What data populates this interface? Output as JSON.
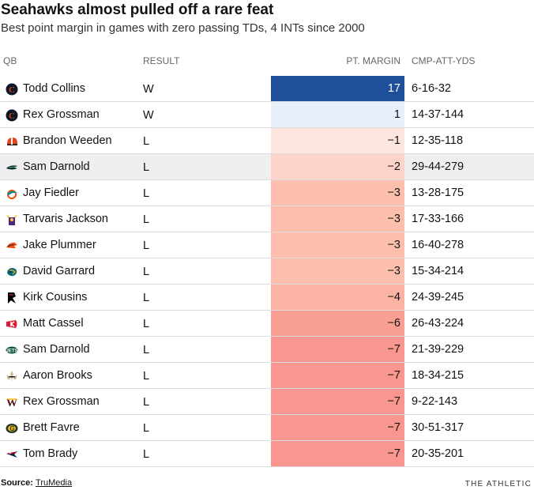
{
  "title": "Seahawks almost pulled off a rare feat",
  "subtitle": "Best point margin in games with zero passing TDs, 4 INTs since 2000",
  "columns": {
    "qb": "QB",
    "result": "RESULT",
    "margin": "PT. MARGIN",
    "cmp_att_yds": "CMP-ATT-YDS"
  },
  "chart_data": {
    "type": "table",
    "title": "Seahawks almost pulled off a rare feat",
    "subtitle": "Best point margin in games with zero passing TDs, 4 INTs since 2000",
    "columns": [
      "QB",
      "RESULT",
      "PT. MARGIN",
      "CMP-ATT-YDS"
    ],
    "rows": [
      {
        "team_icon": "bears-logo-icon",
        "qb": "Todd Collins",
        "result": "W",
        "margin": 17,
        "margin_label": "17",
        "cmp_att_yds": "6-16-32",
        "highlight": false,
        "cell_color": "#1f4e9b",
        "text_color": "#ffffff"
      },
      {
        "team_icon": "bears-logo-icon",
        "qb": "Rex Grossman",
        "result": "W",
        "margin": 1,
        "margin_label": "1",
        "cmp_att_yds": "14-37-144",
        "highlight": false,
        "cell_color": "#e8f1fb",
        "text_color": "#121212"
      },
      {
        "team_icon": "browns-logo-icon",
        "qb": "Brandon Weeden",
        "result": "L",
        "margin": -1,
        "margin_label": "−1",
        "cmp_att_yds": "12-35-118",
        "highlight": false,
        "cell_color": "#fde6e0",
        "text_color": "#121212"
      },
      {
        "team_icon": "seahawks-logo-icon",
        "qb": "Sam Darnold",
        "result": "L",
        "margin": -2,
        "margin_label": "−2",
        "cmp_att_yds": "29-44-279",
        "highlight": true,
        "cell_color": "#fdd4ca",
        "text_color": "#121212"
      },
      {
        "team_icon": "dolphins-logo-icon",
        "qb": "Jay Fiedler",
        "result": "L",
        "margin": -3,
        "margin_label": "−3",
        "cmp_att_yds": "13-28-175",
        "highlight": false,
        "cell_color": "#fcbfae",
        "text_color": "#121212"
      },
      {
        "team_icon": "vikings-logo-icon",
        "qb": "Tarvaris Jackson",
        "result": "L",
        "margin": -3,
        "margin_label": "−3",
        "cmp_att_yds": "17-33-166",
        "highlight": false,
        "cell_color": "#fcbfae",
        "text_color": "#121212"
      },
      {
        "team_icon": "broncos-logo-icon",
        "qb": "Jake Plummer",
        "result": "L",
        "margin": -3,
        "margin_label": "−3",
        "cmp_att_yds": "16-40-278",
        "highlight": false,
        "cell_color": "#fcbfae",
        "text_color": "#121212"
      },
      {
        "team_icon": "jaguars-logo-icon",
        "qb": "David Garrard",
        "result": "L",
        "margin": -3,
        "margin_label": "−3",
        "cmp_att_yds": "15-34-214",
        "highlight": false,
        "cell_color": "#fcbfae",
        "text_color": "#121212"
      },
      {
        "team_icon": "falcons-logo-icon",
        "qb": "Kirk Cousins",
        "result": "L",
        "margin": -4,
        "margin_label": "−4",
        "cmp_att_yds": "24-39-245",
        "highlight": false,
        "cell_color": "#fbb3a3",
        "text_color": "#121212"
      },
      {
        "team_icon": "chiefs-logo-icon",
        "qb": "Matt Cassel",
        "result": "L",
        "margin": -6,
        "margin_label": "−6",
        "cmp_att_yds": "26-43-224",
        "highlight": false,
        "cell_color": "#fa9f93",
        "text_color": "#121212"
      },
      {
        "team_icon": "jets-logo-icon",
        "qb": "Sam Darnold",
        "result": "L",
        "margin": -7,
        "margin_label": "−7",
        "cmp_att_yds": "21-39-229",
        "highlight": false,
        "cell_color": "#f99690",
        "text_color": "#121212"
      },
      {
        "team_icon": "saints-logo-icon",
        "qb": "Aaron Brooks",
        "result": "L",
        "margin": -7,
        "margin_label": "−7",
        "cmp_att_yds": "18-34-215",
        "highlight": false,
        "cell_color": "#f99690",
        "text_color": "#121212"
      },
      {
        "team_icon": "commanders-logo-icon",
        "qb": "Rex Grossman",
        "result": "L",
        "margin": -7,
        "margin_label": "−7",
        "cmp_att_yds": "9-22-143",
        "highlight": false,
        "cell_color": "#f99690",
        "text_color": "#121212"
      },
      {
        "team_icon": "packers-logo-icon",
        "qb": "Brett Favre",
        "result": "L",
        "margin": -7,
        "margin_label": "−7",
        "cmp_att_yds": "30-51-317",
        "highlight": false,
        "cell_color": "#f99690",
        "text_color": "#121212"
      },
      {
        "team_icon": "patriots-logo-icon",
        "qb": "Tom Brady",
        "result": "L",
        "margin": -7,
        "margin_label": "−7",
        "cmp_att_yds": "20-35-201",
        "highlight": false,
        "cell_color": "#f99690",
        "text_color": "#121212"
      }
    ]
  },
  "colors": {
    "positive_strong": "#1f4e9b",
    "positive_light": "#e8f1fb",
    "negative_light": "#fde6e0",
    "negative_strong": "#f99690",
    "highlight_row": "#efefef"
  },
  "footer": {
    "source_label": "Source: ",
    "source_link": "TruMedia",
    "brand": "THE ATHLETIC"
  }
}
